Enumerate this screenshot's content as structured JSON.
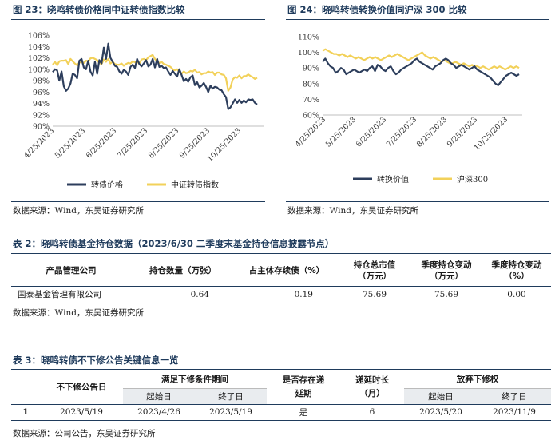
{
  "fig23": {
    "title": "图 23：晓鸣转债价格同中证转债指数比较",
    "source": "数据来源：Wind，东吴证券研究所"
  },
  "fig24": {
    "title": "图 24：晓鸣转债转换价值同沪深 300 比较",
    "source": "数据来源：Wind，东吴证券研究所"
  },
  "chart_data": [
    {
      "type": "line",
      "x_ticks": [
        "4/25/2023",
        "5/25/2023",
        "6/25/2023",
        "7/25/2023",
        "8/25/2023",
        "9/25/2023",
        "10/25/2023"
      ],
      "y_ticks": [
        "90%",
        "92%",
        "94%",
        "96%",
        "98%",
        "100%",
        "102%",
        "104%",
        "106%"
      ],
      "ylim": [
        90,
        106
      ],
      "legend_position": "bottom",
      "series": [
        {
          "name": "转债价格",
          "color": "#2d3e5c",
          "values": [
            99.5,
            100.0,
            99.8,
            98.0,
            99.6,
            97.0,
            96.2,
            96.6,
            97.5,
            99.2,
            99.0,
            98.4,
            101.5,
            101.8,
            100.3,
            100.0,
            101.5,
            99.6,
            98.9,
            101.3,
            99.2,
            101.6,
            101.0,
            103.8,
            101.8,
            104.5,
            102.0,
            101.3,
            100.6,
            100.4,
            99.6,
            99.2,
            99.9,
            99.6,
            99.0,
            100.4,
            100.8,
            100.2,
            101.8,
            100.9,
            100.5,
            101.0,
            101.6,
            100.5,
            100.8,
            101.8,
            100.3,
            101.8,
            100.4,
            100.6,
            100.2,
            100.3,
            99.6,
            99.0,
            99.7,
            99.2,
            98.7,
            100.0,
            99.0,
            97.9,
            98.3,
            97.8,
            98.6,
            98.9,
            97.2,
            97.7,
            96.8,
            97.1,
            97.6,
            96.9,
            96.0,
            97.1,
            96.6,
            96.9,
            96.8,
            96.4,
            96.3,
            95.6,
            95.1,
            93.0,
            93.3,
            94.0,
            94.7,
            94.1,
            94.6,
            94.1,
            94.5,
            94.2,
            94.7,
            94.6,
            94.7,
            94.1,
            93.8
          ]
        },
        {
          "name": "中证转债指数",
          "color": "#f2d15a",
          "values": [
            100.8,
            101.3,
            100.7,
            101.4,
            101.5,
            101.5,
            101.6,
            100.9,
            101.8,
            101.4,
            101.0,
            100.7,
            101.2,
            101.2,
            101.1,
            101.5,
            101.4,
            101.9,
            102.0,
            101.8,
            101.6,
            101.1,
            100.9,
            101.7,
            101.3,
            101.8,
            101.0,
            101.3,
            100.9,
            100.8,
            100.8,
            101.0,
            100.6,
            100.9,
            101.1,
            101.0,
            101.4,
            101.2,
            101.3,
            101.0,
            101.7,
            101.8,
            101.6,
            102.1,
            102.3,
            102.5,
            101.8,
            101.3,
            101.1,
            101.3,
            100.9,
            100.8,
            100.6,
            100.4,
            100.0,
            99.8,
            100.0,
            99.5,
            99.2,
            99.6,
            99.3,
            99.4,
            99.7,
            99.6,
            99.9,
            99.4,
            99.5,
            99.1,
            99.3,
            99.3,
            99.6,
            99.4,
            99.5,
            99.0,
            99.4,
            99.4,
            99.1,
            99.0,
            98.4,
            96.2,
            96.8,
            98.2,
            98.6,
            98.5,
            98.9,
            98.4,
            98.8,
            98.8,
            99.1,
            98.8,
            98.6,
            98.3,
            98.5
          ]
        }
      ]
    },
    {
      "type": "line",
      "x_ticks": [
        "4/25/2023",
        "5/25/2023",
        "6/25/2023",
        "7/25/2023",
        "8/25/2023",
        "9/25/2023",
        "10/25/2023"
      ],
      "y_ticks": [
        "60%",
        "70%",
        "80%",
        "90%",
        "100%",
        "110%"
      ],
      "ylim": [
        60,
        110
      ],
      "legend_position": "bottom",
      "series": [
        {
          "name": "转换价值",
          "color": "#2d3e5c",
          "values": [
            94,
            96,
            93,
            91,
            90,
            87,
            88,
            90,
            89,
            86,
            87,
            88,
            89,
            88,
            87,
            88,
            89,
            88,
            90,
            91,
            88,
            92,
            91,
            89,
            88,
            90,
            91,
            88,
            86,
            87,
            89,
            90,
            91,
            92,
            93,
            95,
            96,
            94,
            93,
            92,
            91,
            90,
            89,
            91,
            92,
            93,
            95,
            96,
            95,
            93,
            92,
            90,
            91,
            92,
            91,
            90,
            89,
            90,
            91,
            89,
            88,
            87,
            86,
            85,
            84,
            82,
            80,
            79,
            81,
            83,
            85,
            86,
            87,
            86,
            85,
            86
          ]
        },
        {
          "name": "沪深300",
          "color": "#f2d15a",
          "values": [
            101,
            102,
            101,
            100,
            99,
            99,
            98,
            99,
            98,
            97,
            98,
            97,
            96,
            97,
            96,
            95,
            96,
            97,
            96,
            97,
            96,
            95,
            96,
            97,
            98,
            97,
            98,
            99,
            98,
            97,
            96,
            95,
            96,
            97,
            98,
            99,
            100,
            98,
            97,
            96,
            97,
            96,
            95,
            94,
            95,
            94,
            93,
            93,
            94,
            93,
            92,
            93,
            92,
            91,
            92,
            91,
            91,
            90,
            91,
            90,
            89,
            90,
            91,
            90,
            91,
            90,
            89,
            90,
            91,
            90,
            91,
            90
          ]
        }
      ]
    }
  ],
  "table2": {
    "title": "表 2：晓鸣转债基金持仓数据（2023/6/30 二季度末基金持仓信息披露节点）",
    "headers": [
      "产品管理公司",
      "持仓数量（万张）",
      "占主体存续债（%）",
      "持仓总市值",
      "季度持仓变动",
      "季度持仓变动"
    ],
    "headers_line2": [
      "",
      "",
      "",
      "（万元）",
      "（万元）",
      "（%）"
    ],
    "row": [
      "国泰基金管理有限公司",
      "0.64",
      "0.19",
      "75.69",
      "75.69",
      "0.00"
    ],
    "source": "数据来源：Wind，东吴证券研究所"
  },
  "table3": {
    "title": "表 3：晓鸣转债不下修公告关键信息一览",
    "h_announce": "不下修公告日",
    "h_period": "满足下修条件期间",
    "h_start": "起始日",
    "h_end": "终了日",
    "h_exists": "是否存在递延期",
    "h_delay": "递延时长（月）",
    "h_waive": "放弃下修权",
    "h_waive_start": "起始日",
    "h_waive_end": "终了日",
    "row": [
      "1",
      "2023/5/19",
      "2023/4/26",
      "2023/5/19",
      "是",
      "6",
      "2023/5/20",
      "2023/11/9"
    ],
    "source": "数据来源：公司公告，东吴证券研究所"
  }
}
